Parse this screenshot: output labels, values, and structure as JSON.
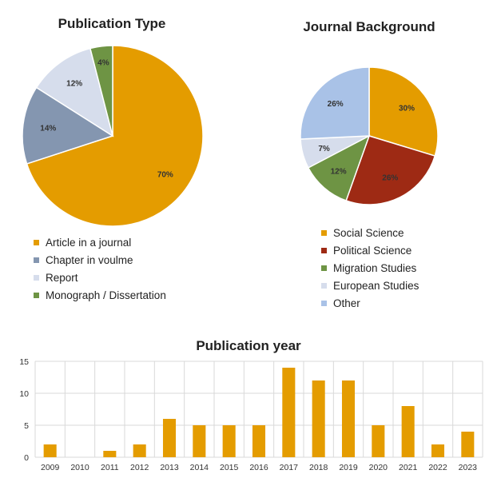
{
  "chart_data": [
    {
      "type": "pie",
      "title": "Publication Type",
      "labels": [
        "Article  in a journal",
        "Chapter in voulme",
        "Report",
        "Monograph / Dissertation"
      ],
      "values": [
        70,
        14,
        12,
        4
      ],
      "value_labels": [
        "70%",
        "14%",
        "12%",
        "4%"
      ],
      "colors": [
        "#E49C00",
        "#8496B0",
        "#D6DDEC",
        "#6E9444"
      ],
      "legend_position": "bottom"
    },
    {
      "type": "pie",
      "title": "Journal Background",
      "labels": [
        "Social Science",
        "Political Science",
        "Migration Studies",
        "European Studies",
        "Other"
      ],
      "values": [
        30,
        26,
        12,
        7,
        26
      ],
      "value_labels": [
        "30%",
        "26%",
        "12%",
        "7%",
        "26%"
      ],
      "colors": [
        "#E49C00",
        "#9E2A14",
        "#6E9444",
        "#D6DDEC",
        "#A9C2E7"
      ],
      "legend_position": "bottom"
    },
    {
      "type": "bar",
      "title": "Publication year",
      "categories": [
        "2009",
        "2010",
        "2011",
        "2012",
        "2013",
        "2014",
        "2015",
        "2016",
        "2017",
        "2018",
        "2019",
        "2020",
        "2021",
        "2022",
        "2023"
      ],
      "values": [
        2,
        0,
        1,
        2,
        6,
        5,
        5,
        5,
        14,
        12,
        12,
        5,
        8,
        2,
        4
      ],
      "ylim": [
        0,
        15
      ],
      "yticks": [
        "0",
        "5",
        "10",
        "15"
      ],
      "color": "#E49C00",
      "grid": true
    }
  ]
}
